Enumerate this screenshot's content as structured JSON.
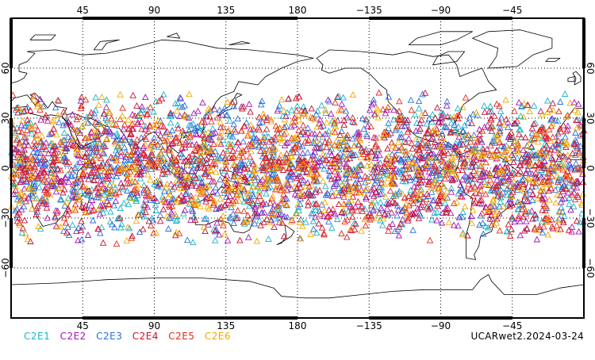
{
  "map": {
    "projection": "equirectangular, centered on 180",
    "lon_range": [
      0,
      360
    ],
    "lat_range": [
      -90,
      90
    ],
    "lon_tick_labels": [
      "45",
      "90",
      "135",
      "180",
      "−135",
      "−90",
      "−45"
    ],
    "lat_tick_labels": [
      "60",
      "30",
      "0",
      "−30",
      "−60"
    ],
    "grid": "dotted",
    "marker": "open triangle",
    "occultation_band_lat": [
      -45,
      45
    ]
  },
  "legend": {
    "items": [
      {
        "label": "C2E1",
        "color": "#19b3c8"
      },
      {
        "label": "C2E2",
        "color": "#a017b9"
      },
      {
        "label": "C2E3",
        "color": "#2a6fdc"
      },
      {
        "label": "C2E4",
        "color": "#c8102e"
      },
      {
        "label": "C2E5",
        "color": "#e4281e"
      },
      {
        "label": "C2E6",
        "color": "#f2a900"
      }
    ]
  },
  "footer": {
    "product_label": "UCARwet2.2024-03-24"
  }
}
